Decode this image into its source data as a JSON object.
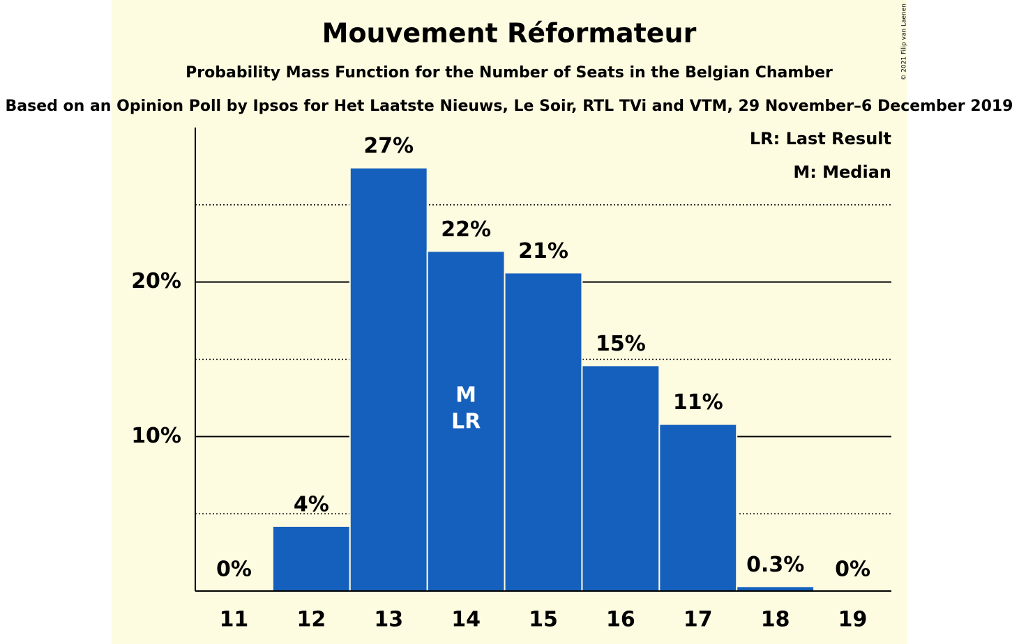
{
  "chart_data": {
    "type": "bar",
    "title": "Mouvement Réformateur",
    "subtitle": "Probability Mass Function for the Number of Seats in the Belgian Chamber",
    "source": "Based on an Opinion Poll by Ipsos for Het Laatste Nieuws, Le Soir, RTL TVi and VTM, 29 November–6 December 2019",
    "copyright": "© 2021 Filip van Laenen",
    "categories": [
      11,
      12,
      13,
      14,
      15,
      16,
      17,
      18,
      19
    ],
    "values": [
      0,
      4.2,
      27.4,
      22.0,
      20.6,
      14.6,
      10.8,
      0.3,
      0
    ],
    "value_labels": [
      "0%",
      "4%",
      "27%",
      "22%",
      "21%",
      "15%",
      "11%",
      "0.3%",
      "0%"
    ],
    "color": "#1560bd",
    "ylim": [
      0,
      30
    ],
    "yticks": [
      {
        "value": 10,
        "label": "10%"
      },
      {
        "value": 20,
        "label": "20%"
      }
    ],
    "minor_yticks": [
      5,
      15,
      25
    ],
    "grid": true,
    "median": 14,
    "median_label": "M",
    "last_result": 14,
    "last_result_label": "LR",
    "legend": [
      "LR: Last Result",
      "M: Median"
    ]
  }
}
